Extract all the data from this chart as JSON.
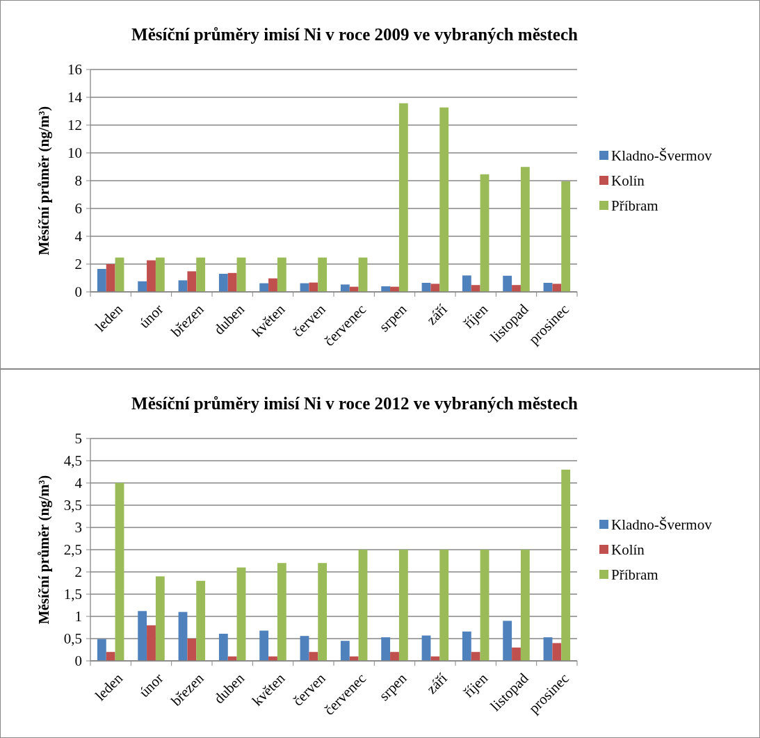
{
  "chart_data": [
    {
      "type": "bar",
      "title": "Měsíční průměry imisí Ni v roce 2009 ve vybraných městech",
      "ylabel": "Měsíční průměr (ng/m³)",
      "categories": [
        "leden",
        "únor",
        "březen",
        "duben",
        "květen",
        "červen",
        "červenec",
        "srpen",
        "září",
        "říjen",
        "listopad",
        "prosinec"
      ],
      "series": [
        {
          "name": "Kladno-Švermov",
          "color": "#4f81bd",
          "values": [
            1.65,
            0.76,
            0.83,
            1.3,
            0.62,
            0.62,
            0.53,
            0.4,
            0.65,
            1.18,
            1.16,
            0.65
          ]
        },
        {
          "name": "Kolín",
          "color": "#c0504d",
          "values": [
            2.0,
            2.27,
            1.48,
            1.36,
            0.97,
            0.67,
            0.37,
            0.37,
            0.58,
            0.49,
            0.49,
            0.58
          ]
        },
        {
          "name": "Příbram",
          "color": "#9bbb59",
          "values": [
            2.47,
            2.47,
            2.47,
            2.47,
            2.47,
            2.47,
            2.47,
            13.57,
            13.27,
            8.46,
            8.99,
            7.95
          ]
        }
      ],
      "ylim": [
        0,
        16
      ],
      "yticks": [
        0,
        2,
        4,
        6,
        8,
        10,
        12,
        14,
        16
      ],
      "grid": "y",
      "legend": "right"
    },
    {
      "type": "bar",
      "title": "Měsíční průměry imisí Ni v roce 2012 ve vybraných městech",
      "ylabel": "Měsíční průměr (ng/m³)",
      "categories": [
        "leden",
        "únor",
        "březen",
        "duben",
        "květen",
        "červen",
        "červenec",
        "srpen",
        "září",
        "říjen",
        "listopad",
        "prosinec"
      ],
      "series": [
        {
          "name": "Kladno-Švermov",
          "color": "#4f81bd",
          "values": [
            0.49,
            1.12,
            1.1,
            0.61,
            0.68,
            0.56,
            0.45,
            0.53,
            0.57,
            0.66,
            0.9,
            0.53
          ]
        },
        {
          "name": "Kolín",
          "color": "#c0504d",
          "values": [
            0.2,
            0.8,
            0.5,
            0.1,
            0.1,
            0.2,
            0.1,
            0.2,
            0.1,
            0.2,
            0.3,
            0.4
          ]
        },
        {
          "name": "Příbram",
          "color": "#9bbb59",
          "values": [
            4.0,
            1.9,
            1.8,
            2.1,
            2.2,
            2.2,
            2.5,
            2.5,
            2.5,
            2.5,
            2.5,
            4.3
          ]
        }
      ],
      "ylim": [
        0,
        5
      ],
      "yticks": [
        0,
        {
          "value": 0.5,
          "label": "0,5"
        },
        1,
        {
          "value": 1.5,
          "label": "1,5"
        },
        2,
        {
          "value": 2.5,
          "label": "2,5"
        },
        3,
        {
          "value": 3.5,
          "label": "3,5"
        },
        4,
        {
          "value": 4.5,
          "label": "4,5"
        },
        5
      ],
      "grid": "y",
      "legend": "right"
    }
  ]
}
